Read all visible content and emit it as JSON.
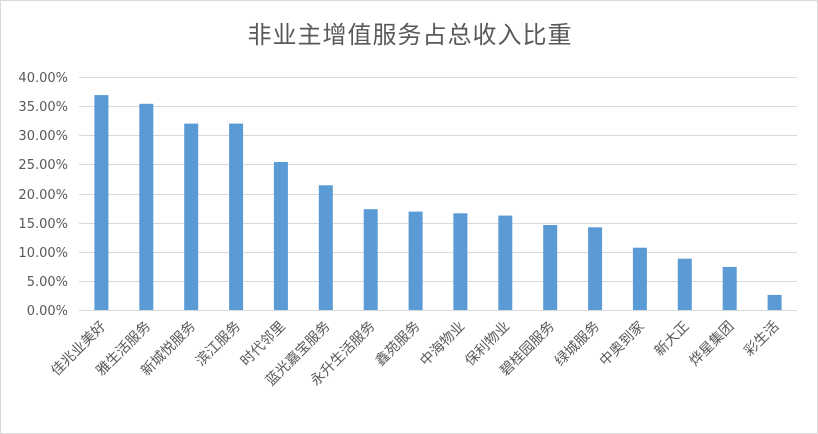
{
  "chart_data": {
    "type": "bar",
    "title": "非业主增值服务占总收入比重",
    "xlabel": "",
    "ylabel": "",
    "ylim": [
      0,
      0.4
    ],
    "y_ticks": [
      "0.00%",
      "5.00%",
      "10.00%",
      "15.00%",
      "20.00%",
      "25.00%",
      "30.00%",
      "35.00%",
      "40.00%"
    ],
    "grid": true,
    "legend": "none",
    "bar_color": "#5b9bd5",
    "categories": [
      "佳兆业美好",
      "雅生活服务",
      "新城悦服务",
      "滨江服务",
      "时代邻里",
      "蓝光嘉宝服务",
      "永升生活服务",
      "鑫苑服务",
      "中海物业",
      "保利物业",
      "碧桂园服务",
      "绿城服务",
      "中奥到家",
      "新大正",
      "烨星集团",
      "彩生活"
    ],
    "values": [
      0.369,
      0.354,
      0.32,
      0.32,
      0.254,
      0.214,
      0.173,
      0.169,
      0.166,
      0.162,
      0.146,
      0.142,
      0.107,
      0.088,
      0.074,
      0.026
    ]
  }
}
